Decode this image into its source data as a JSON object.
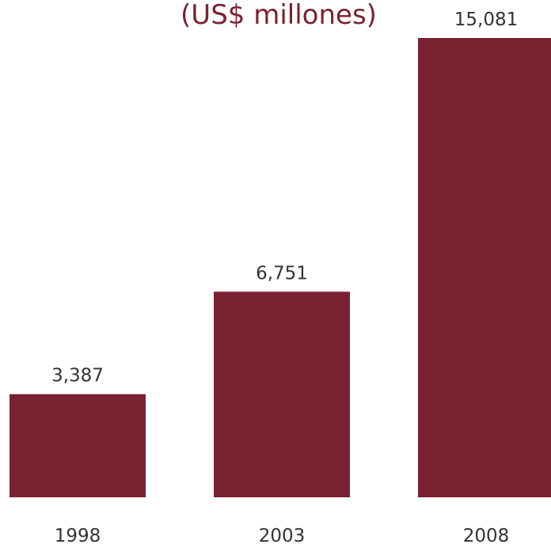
{
  "chart_data": {
    "type": "bar",
    "title": "(US$ millones)",
    "categories": [
      "1998",
      "2003",
      "2008"
    ],
    "values": [
      3387,
      6751,
      15081
    ],
    "value_labels": [
      "3,387",
      "6,751",
      "15,081"
    ],
    "xlabel": "",
    "ylabel": "",
    "ylim": [
      0,
      15081
    ],
    "grid": false,
    "legend": "none",
    "bar_color": "#7a2232"
  }
}
